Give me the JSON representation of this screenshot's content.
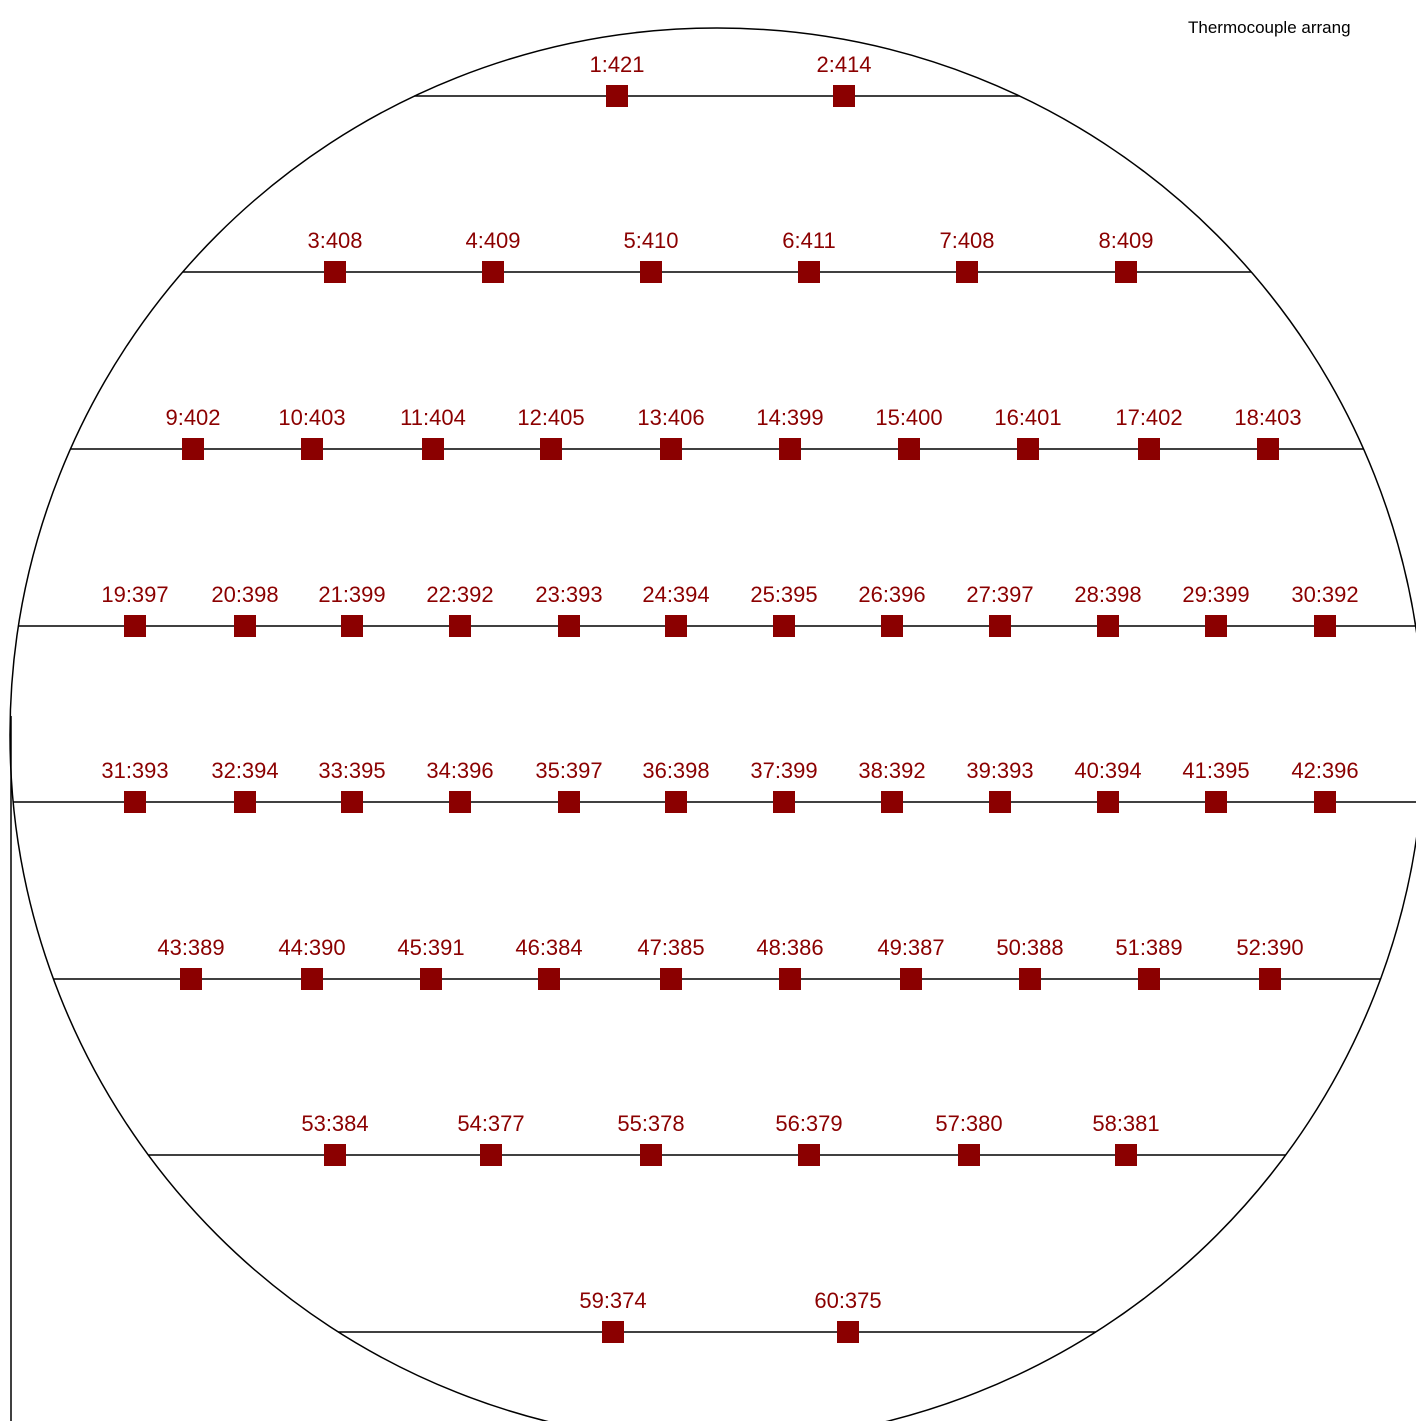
{
  "title": "Thermocouple arrang",
  "colors": {
    "marker": "#8b0000",
    "label": "#8b0000",
    "outline": "#000000"
  },
  "rows": [
    {
      "sensors": [
        {
          "id": 1,
          "value": 421
        },
        {
          "id": 2,
          "value": 414
        }
      ]
    },
    {
      "sensors": [
        {
          "id": 3,
          "value": 408
        },
        {
          "id": 4,
          "value": 409
        },
        {
          "id": 5,
          "value": 410
        },
        {
          "id": 6,
          "value": 411
        },
        {
          "id": 7,
          "value": 408
        },
        {
          "id": 8,
          "value": 409
        }
      ]
    },
    {
      "sensors": [
        {
          "id": 9,
          "value": 402
        },
        {
          "id": 10,
          "value": 403
        },
        {
          "id": 11,
          "value": 404
        },
        {
          "id": 12,
          "value": 405
        },
        {
          "id": 13,
          "value": 406
        },
        {
          "id": 14,
          "value": 399
        },
        {
          "id": 15,
          "value": 400
        },
        {
          "id": 16,
          "value": 401
        },
        {
          "id": 17,
          "value": 402
        },
        {
          "id": 18,
          "value": 403
        }
      ]
    },
    {
      "sensors": [
        {
          "id": 19,
          "value": 397
        },
        {
          "id": 20,
          "value": 398
        },
        {
          "id": 21,
          "value": 399
        },
        {
          "id": 22,
          "value": 392
        },
        {
          "id": 23,
          "value": 393
        },
        {
          "id": 24,
          "value": 394
        },
        {
          "id": 25,
          "value": 395
        },
        {
          "id": 26,
          "value": 396
        },
        {
          "id": 27,
          "value": 397
        },
        {
          "id": 28,
          "value": 398
        },
        {
          "id": 29,
          "value": 399
        },
        {
          "id": 30,
          "value": 392
        }
      ]
    },
    {
      "sensors": [
        {
          "id": 31,
          "value": 393
        },
        {
          "id": 32,
          "value": 394
        },
        {
          "id": 33,
          "value": 395
        },
        {
          "id": 34,
          "value": 396
        },
        {
          "id": 35,
          "value": 397
        },
        {
          "id": 36,
          "value": 398
        },
        {
          "id": 37,
          "value": 399
        },
        {
          "id": 38,
          "value": 392
        },
        {
          "id": 39,
          "value": 393
        },
        {
          "id": 40,
          "value": 394
        },
        {
          "id": 41,
          "value": 395
        },
        {
          "id": 42,
          "value": 396
        }
      ]
    },
    {
      "sensors": [
        {
          "id": 43,
          "value": 389
        },
        {
          "id": 44,
          "value": 390
        },
        {
          "id": 45,
          "value": 391
        },
        {
          "id": 46,
          "value": 384
        },
        {
          "id": 47,
          "value": 385
        },
        {
          "id": 48,
          "value": 386
        },
        {
          "id": 49,
          "value": 387
        },
        {
          "id": 50,
          "value": 388
        },
        {
          "id": 51,
          "value": 389
        },
        {
          "id": 52,
          "value": 390
        }
      ]
    },
    {
      "sensors": [
        {
          "id": 53,
          "value": 384
        },
        {
          "id": 54,
          "value": 377
        },
        {
          "id": 55,
          "value": 378
        },
        {
          "id": 56,
          "value": 379
        },
        {
          "id": 57,
          "value": 380
        },
        {
          "id": 58,
          "value": 381
        }
      ]
    },
    {
      "sensors": [
        {
          "id": 59,
          "value": 374
        },
        {
          "id": 60,
          "value": 375
        }
      ]
    }
  ]
}
